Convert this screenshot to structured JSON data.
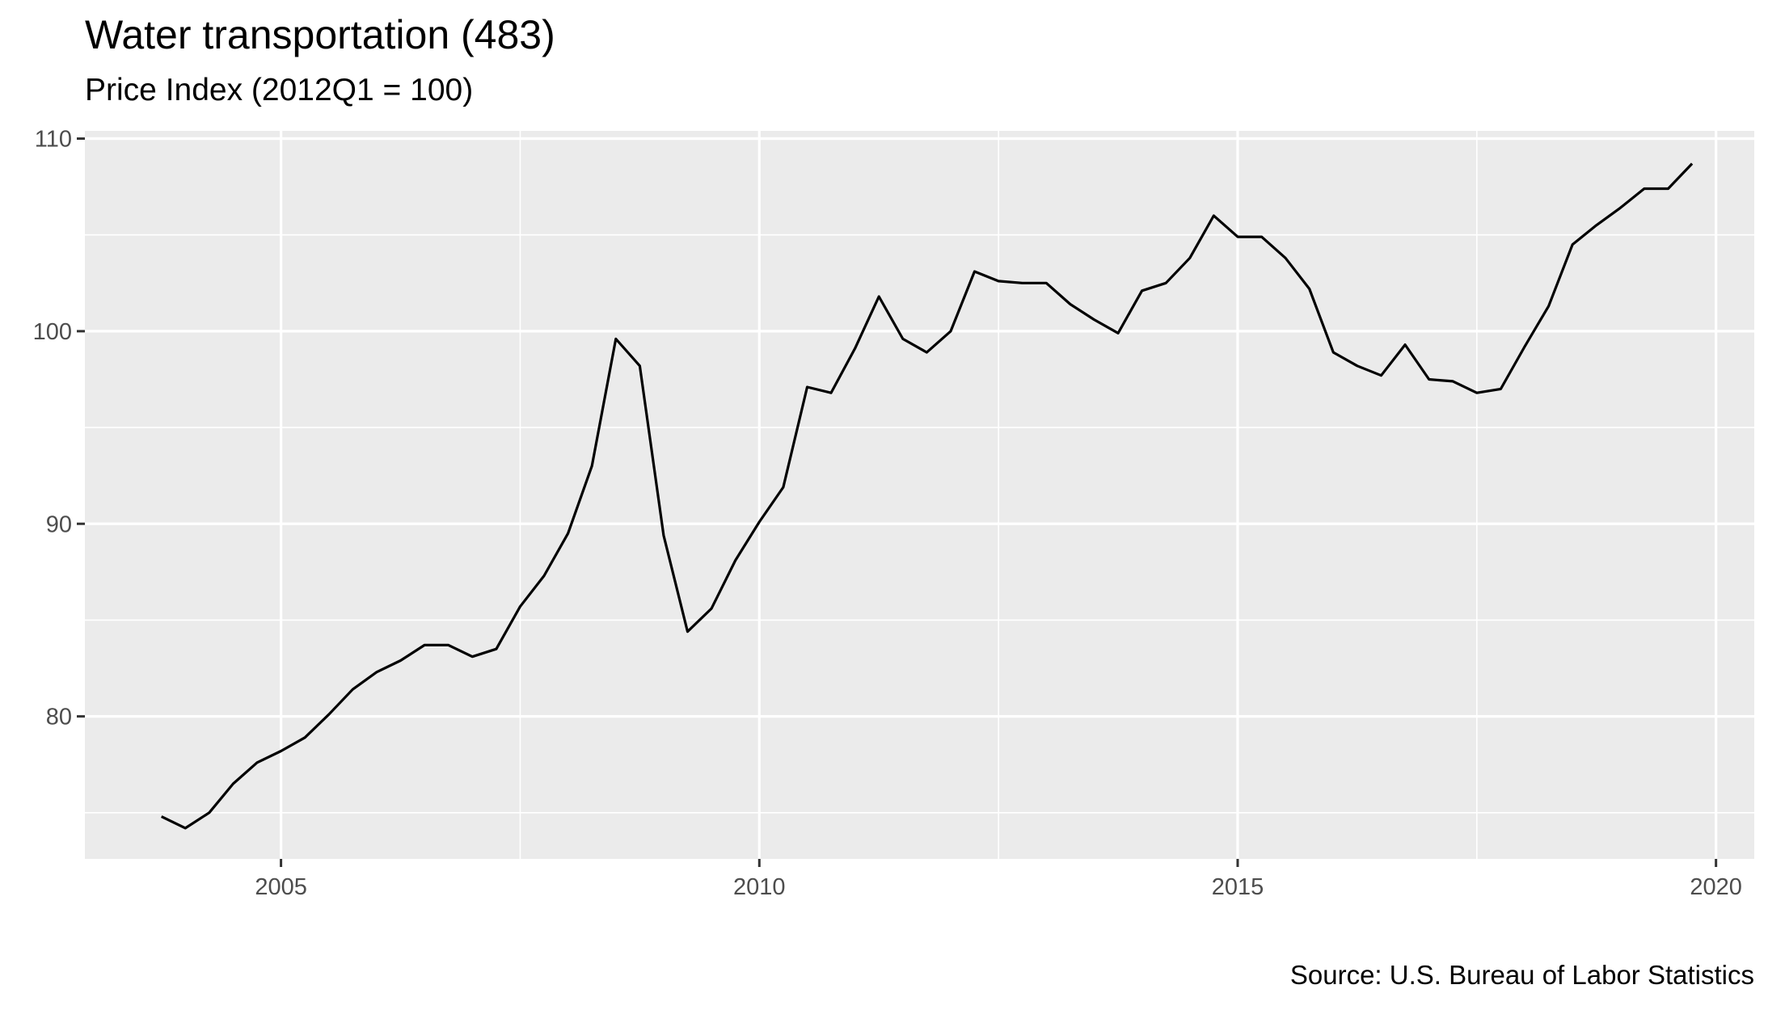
{
  "title": "Water transportation (483)",
  "subtitle": "Price Index (2012Q1 = 100)",
  "caption": "Source: U.S. Bureau of Labor Statistics",
  "chart_data": {
    "type": "line",
    "title": "Water transportation (483)",
    "subtitle": "Price Index (2012Q1 = 100)",
    "xlabel": "",
    "ylabel": "",
    "xlim": [
      2002.95,
      2020.4
    ],
    "ylim": [
      72.6,
      110.4
    ],
    "x_ticks": [
      2005,
      2010,
      2015,
      2020
    ],
    "x_tick_labels": [
      "2005",
      "2010",
      "2015",
      "2020"
    ],
    "y_ticks": [
      80,
      90,
      100,
      110
    ],
    "y_tick_labels": [
      "80",
      "90",
      "100",
      "110"
    ],
    "grid": true,
    "colors": {
      "line": "#000000",
      "panel": "#ebebeb",
      "grid": "#ffffff",
      "tick_text": "#4d4d4d"
    },
    "series": [
      {
        "x": [
          2003.75,
          2004.0,
          2004.25,
          2004.5,
          2004.75,
          2005.0,
          2005.25,
          2005.5,
          2005.75,
          2006.0,
          2006.25,
          2006.5,
          2006.75,
          2007.0,
          2007.25,
          2007.5,
          2007.75,
          2008.0,
          2008.25,
          2008.5,
          2008.75,
          2009.0,
          2009.25,
          2009.5,
          2009.75,
          2010.0,
          2010.25,
          2010.5,
          2010.75,
          2011.0,
          2011.25,
          2011.5,
          2011.75,
          2012.0,
          2012.25,
          2012.5,
          2012.75,
          2013.0,
          2013.25,
          2013.5,
          2013.75,
          2014.0,
          2014.25,
          2014.5,
          2014.75,
          2015.0,
          2015.25,
          2015.5,
          2015.75,
          2016.0,
          2016.25,
          2016.5,
          2016.75,
          2017.0,
          2017.25,
          2017.5,
          2017.75,
          2018.0,
          2018.25,
          2018.5,
          2018.75,
          2019.0,
          2019.25,
          2019.5,
          2019.75
        ],
        "values": [
          74.8,
          74.2,
          75.0,
          76.5,
          77.6,
          78.2,
          78.9,
          80.1,
          81.4,
          82.3,
          82.9,
          83.7,
          83.7,
          83.1,
          83.5,
          85.7,
          87.3,
          89.5,
          93.0,
          99.6,
          98.2,
          89.4,
          84.4,
          85.6,
          88.1,
          90.1,
          91.9,
          97.1,
          96.8,
          99.1,
          101.8,
          99.6,
          98.9,
          100.0,
          103.1,
          102.6,
          102.5,
          102.5,
          101.4,
          100.6,
          99.9,
          102.1,
          102.5,
          103.8,
          106.0,
          104.9,
          104.9,
          103.8,
          102.2,
          98.9,
          98.2,
          97.7,
          99.3,
          97.5,
          97.4,
          96.8,
          97.0,
          99.2,
          101.3,
          104.5,
          105.5,
          106.4,
          107.4,
          107.4,
          108.7
        ]
      }
    ]
  }
}
